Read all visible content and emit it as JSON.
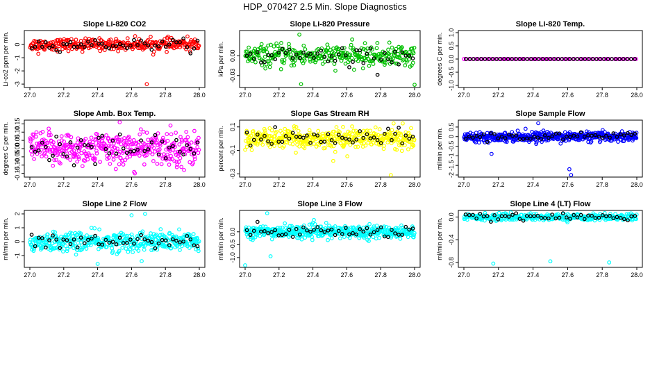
{
  "page_title": "HDP_070427  2.5 Min. Slope Diagnostics",
  "x_tick_labels": [
    "27.0",
    "27.2",
    "27.4",
    "27.6",
    "27.8",
    "28.0"
  ],
  "chart_data": [
    {
      "type": "scatter",
      "title": "Slope Li-820 CO2",
      "ylabel": "Li-co2 ppm per min.",
      "color": "#ff0000",
      "xlim": [
        27.0,
        28.0
      ],
      "ylim": [
        -3.1,
        0.9
      ],
      "yticks": [
        "0",
        "-1",
        "-2",
        "-3"
      ],
      "ytick_values": [
        0,
        -1,
        -2,
        -3
      ],
      "spread": 0.22,
      "n": 320,
      "series": [
        {
          "name": "slopes",
          "x": [
            27.05,
            27.31,
            27.69
          ],
          "y": [
            -0.7,
            -0.55,
            -3.0
          ]
        }
      ]
    },
    {
      "type": "scatter",
      "title": "Slope Li-820 Pressure",
      "ylabel": "kPa per min.",
      "color": "#00c000",
      "xlim": [
        27.0,
        28.0
      ],
      "ylim": [
        -0.045,
        0.035
      ],
      "yticks": [
        "0.00",
        "-0.03"
      ],
      "ytick_values": [
        0,
        -0.03
      ],
      "spread": 0.008,
      "n": 320,
      "series": [
        {
          "name": "slopes",
          "x": [
            27.32,
            27.33,
            28.0
          ],
          "y": [
            0.032,
            -0.043,
            -0.044
          ]
        }
      ]
    },
    {
      "type": "scatter",
      "title": "Slope Li-820 Temp.",
      "ylabel": "degrees C per min.",
      "color": "#ff00ff",
      "xlim": [
        27.0,
        28.0
      ],
      "ylim": [
        -1.0,
        1.0
      ],
      "yticks": [
        "1.0",
        "0.5",
        "0.0",
        "-0.5",
        "-1.0"
      ],
      "ytick_values": [
        1,
        0.5,
        0,
        -0.5,
        -1
      ],
      "spread": 0,
      "n": 80,
      "series": [
        {
          "name": "slopes",
          "x": [
            27.0
          ],
          "y": [
            0.0
          ]
        }
      ]
    },
    {
      "type": "scatter",
      "title": "Slope Amb. Box Temp.",
      "ylabel": "degrees C per min.",
      "color": "#ff00ff",
      "xlim": [
        27.0,
        28.0
      ],
      "ylim": [
        -0.16,
        0.16
      ],
      "yticks": [
        "0.15",
        "0.10",
        "0.05",
        "0.00",
        "-0.05",
        "-0.10",
        "-0.15"
      ],
      "ytick_values": [
        0.15,
        0.1,
        0.05,
        0,
        -0.05,
        -0.1,
        -0.15
      ],
      "spread": 0.05,
      "n": 420,
      "series": [
        {
          "name": "slopes",
          "x": [
            27.53,
            27.62,
            27.83,
            27.91
          ],
          "y": [
            0.16,
            -0.15,
            0.14,
            -0.13
          ]
        }
      ]
    },
    {
      "type": "scatter",
      "title": "Slope Gas Stream RH",
      "ylabel": "percent per min.",
      "color": "#ffff00",
      "xlim": [
        27.0,
        28.0
      ],
      "ylim": [
        -0.31,
        0.14
      ],
      "yticks": [
        "0.1",
        "-0.1",
        "-0.3"
      ],
      "ytick_values": [
        0.1,
        -0.1,
        -0.3
      ],
      "spread": 0.04,
      "n": 420,
      "series": [
        {
          "name": "slopes",
          "x": [
            27.52,
            27.86,
            27.93
          ],
          "y": [
            -0.19,
            -0.31,
            0.13
          ]
        }
      ]
    },
    {
      "type": "scatter",
      "title": "Slope Sample Flow",
      "ylabel": "ml/min per min.",
      "color": "#0000ff",
      "xlim": [
        27.0,
        28.0
      ],
      "ylim": [
        -2.0,
        0.75
      ],
      "yticks": [
        "0.5",
        "0",
        "-0.5",
        "-1",
        "-1.5",
        "-2"
      ],
      "ytick_values": [
        0.5,
        0,
        -0.5,
        -1,
        -1.5,
        -2
      ],
      "spread": 0.12,
      "n": 460,
      "series": [
        {
          "name": "slopes",
          "x": [
            27.16,
            27.43,
            27.61,
            27.62
          ],
          "y": [
            -0.9,
            0.7,
            -1.7,
            -2.0
          ]
        }
      ]
    },
    {
      "type": "scatter",
      "title": "Slope Line 2 Flow",
      "ylabel": "ml/min per min.",
      "color": "#00ffff",
      "xlim": [
        27.0,
        28.0
      ],
      "ylim": [
        -1.7,
        2.1
      ],
      "yticks": [
        "2",
        "1",
        "0",
        "-1"
      ],
      "ytick_values": [
        2,
        1,
        0,
        -1
      ],
      "spread": 0.35,
      "n": 420,
      "series": [
        {
          "name": "slopes",
          "x": [
            27.4,
            27.6,
            27.66,
            27.68
          ],
          "y": [
            -1.6,
            1.9,
            -1.4,
            2.0
          ]
        }
      ]
    },
    {
      "type": "scatter",
      "title": "Slope Line 3 Flow",
      "ylabel": "ml/min per min.",
      "color": "#00ffff",
      "xlim": [
        27.0,
        28.0
      ],
      "ylim": [
        -1.3,
        0.75
      ],
      "yticks": [
        "0.0",
        "-0.5",
        "-1.0"
      ],
      "ytick_values": [
        0,
        -0.5,
        -1.0
      ],
      "spread": 0.12,
      "n": 460,
      "series": [
        {
          "name": "slopes",
          "x": [
            27.0,
            27.13,
            27.15
          ],
          "y": [
            -1.3,
            0.72,
            -0.95
          ]
        }
      ]
    },
    {
      "type": "scatter",
      "title": "Slope Line 4 (LT) Flow",
      "ylabel": "ml/min per min.",
      "color": "#00ffff",
      "xlim": [
        27.0,
        28.0
      ],
      "ylim": [
        -0.85,
        0.08
      ],
      "yticks": [
        "0.0",
        "-0.4",
        "-0.8"
      ],
      "ytick_values": [
        0,
        -0.4,
        -0.8
      ],
      "spread": 0.03,
      "n": 320,
      "series": [
        {
          "name": "slopes",
          "x": [
            27.17,
            27.5,
            27.84
          ],
          "y": [
            -0.82,
            -0.78,
            -0.8
          ]
        }
      ]
    }
  ]
}
